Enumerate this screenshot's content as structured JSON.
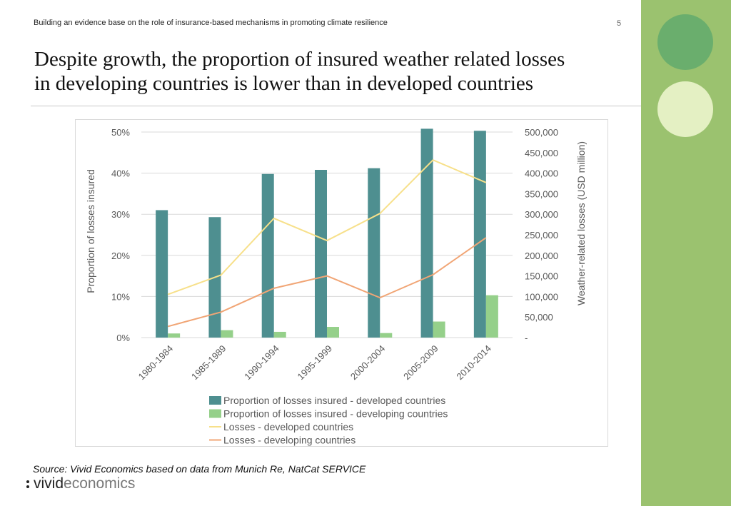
{
  "header": {
    "subtitle": "Building an evidence base on the role of insurance-based mechanisms in promoting climate resilience",
    "page_number": "5"
  },
  "title_lines": [
    "Despite growth, the proportion of insured weather related losses",
    "in developing countries is lower than in developed countries"
  ],
  "source": "Source: Vivid Economics based on data from Munich Re, NatCat SERVICE",
  "logo": {
    "part1": "vivid",
    "part2": "economics"
  },
  "colors": {
    "sidebar": "#9bc26f",
    "circle_dark": "#6aae6d",
    "circle_light": "#e4f0c3"
  },
  "chart_data": {
    "type": "bar",
    "categories": [
      "1980-1984",
      "1985-1989",
      "1990-1994",
      "1995-1999",
      "2000-2004",
      "2005-2009",
      "2010-2014"
    ],
    "ylabel": "Proportion of losses insured",
    "y2label": "Weather-related losses (USD million)",
    "ylim": [
      0,
      50
    ],
    "y2lim": [
      0,
      500000
    ],
    "yticks": [
      "0%",
      "10%",
      "20%",
      "30%",
      "40%",
      "50%"
    ],
    "y2ticks": [
      "-",
      "50,000",
      "100,000",
      "150,000",
      "200,000",
      "250,000",
      "300,000",
      "350,000",
      "400,000",
      "450,000",
      "500,000"
    ],
    "grid": true,
    "legend_position": "bottom",
    "series": [
      {
        "name": "Proportion of losses insured - developed countries",
        "kind": "bar",
        "axis": "left",
        "color": "#4e8f90",
        "values": [
          31,
          29.3,
          39.8,
          40.8,
          41.2,
          50.8,
          50.3
        ]
      },
      {
        "name": "Proportion of losses insured - developing countries",
        "kind": "bar",
        "axis": "left",
        "color": "#95d08a",
        "values": [
          1.0,
          1.8,
          1.4,
          2.6,
          1.1,
          3.9,
          10.3
        ]
      },
      {
        "name": "Losses - developed countries",
        "kind": "line",
        "axis": "right",
        "color": "#f7e08a",
        "values": [
          105000,
          152000,
          290000,
          236000,
          302000,
          432000,
          377000
        ]
      },
      {
        "name": "Losses - developing countries",
        "kind": "line",
        "axis": "right",
        "color": "#f1a575",
        "values": [
          27000,
          62000,
          120000,
          150000,
          97000,
          153000,
          243000
        ]
      }
    ]
  }
}
